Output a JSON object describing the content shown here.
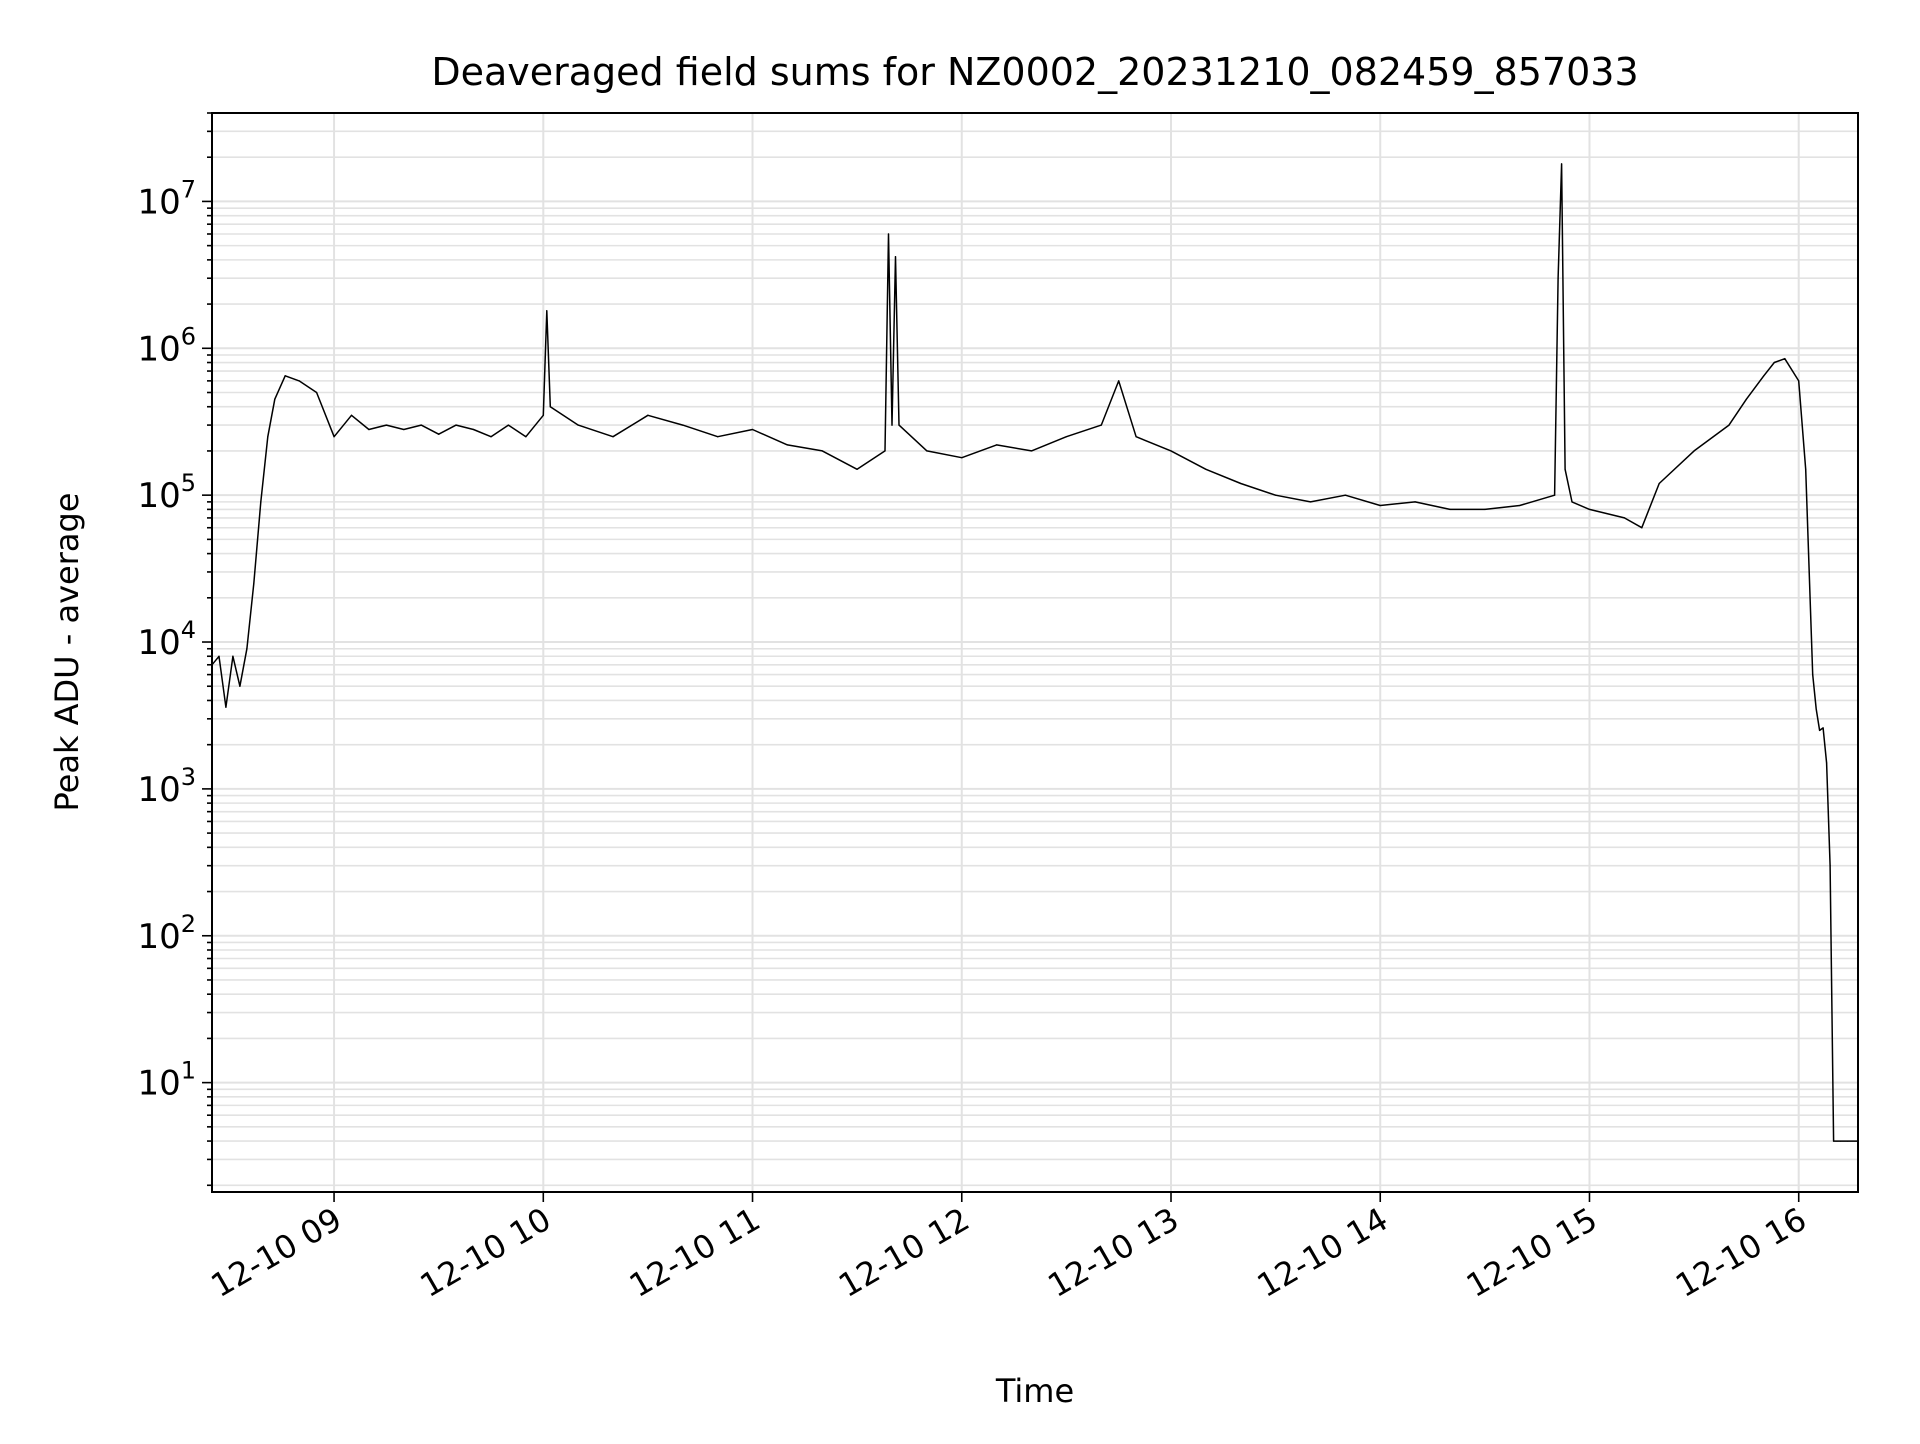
{
  "chart_data": {
    "type": "line",
    "title": "Deaveraged field sums for NZ0002_20231210_082459_857033",
    "xlabel": "Time",
    "ylabel": "Peak ADU - average",
    "yscale": "log",
    "ylim": [
      1.8,
      40000000
    ],
    "xlim": [
      "2023-12-10 08:25",
      "2023-12-10 16:17"
    ],
    "grid": true,
    "line_color": "#000000",
    "x_ticks": [
      {
        "value": "2023-12-10 09:00",
        "label": "12-10 09"
      },
      {
        "value": "2023-12-10 10:00",
        "label": "12-10 10"
      },
      {
        "value": "2023-12-10 11:00",
        "label": "12-10 11"
      },
      {
        "value": "2023-12-10 12:00",
        "label": "12-10 12"
      },
      {
        "value": "2023-12-10 13:00",
        "label": "12-10 13"
      },
      {
        "value": "2023-12-10 14:00",
        "label": "12-10 14"
      },
      {
        "value": "2023-12-10 15:00",
        "label": "12-10 15"
      },
      {
        "value": "2023-12-10 16:00",
        "label": "12-10 16"
      }
    ],
    "y_ticks": [
      {
        "value": 10,
        "base": "10",
        "exp": "1"
      },
      {
        "value": 100,
        "base": "10",
        "exp": "2"
      },
      {
        "value": 1000,
        "base": "10",
        "exp": "3"
      },
      {
        "value": 10000,
        "base": "10",
        "exp": "4"
      },
      {
        "value": 100000,
        "base": "10",
        "exp": "5"
      },
      {
        "value": 1000000,
        "base": "10",
        "exp": "6"
      },
      {
        "value": 10000000,
        "base": "10",
        "exp": "7"
      }
    ],
    "series": [
      {
        "x": [
          "2023-12-10 08:25",
          "2023-12-10 08:27",
          "2023-12-10 08:29",
          "2023-12-10 08:31",
          "2023-12-10 08:33",
          "2023-12-10 08:35",
          "2023-12-10 08:37",
          "2023-12-10 08:39",
          "2023-12-10 08:41",
          "2023-12-10 08:43",
          "2023-12-10 08:46",
          "2023-12-10 08:50",
          "2023-12-10 08:55",
          "2023-12-10 09:00",
          "2023-12-10 09:05",
          "2023-12-10 09:10",
          "2023-12-10 09:15",
          "2023-12-10 09:20",
          "2023-12-10 09:25",
          "2023-12-10 09:30",
          "2023-12-10 09:35",
          "2023-12-10 09:40",
          "2023-12-10 09:45",
          "2023-12-10 09:50",
          "2023-12-10 09:55",
          "2023-12-10 10:00",
          "2023-12-10 10:01",
          "2023-12-10 10:02",
          "2023-12-10 10:10",
          "2023-12-10 10:20",
          "2023-12-10 10:30",
          "2023-12-10 10:40",
          "2023-12-10 10:50",
          "2023-12-10 11:00",
          "2023-12-10 11:10",
          "2023-12-10 11:20",
          "2023-12-10 11:30",
          "2023-12-10 11:38",
          "2023-12-10 11:39",
          "2023-12-10 11:40",
          "2023-12-10 11:41",
          "2023-12-10 11:42",
          "2023-12-10 11:50",
          "2023-12-10 12:00",
          "2023-12-10 12:10",
          "2023-12-10 12:20",
          "2023-12-10 12:30",
          "2023-12-10 12:40",
          "2023-12-10 12:45",
          "2023-12-10 12:50",
          "2023-12-10 13:00",
          "2023-12-10 13:10",
          "2023-12-10 13:20",
          "2023-12-10 13:30",
          "2023-12-10 13:40",
          "2023-12-10 13:50",
          "2023-12-10 14:00",
          "2023-12-10 14:10",
          "2023-12-10 14:20",
          "2023-12-10 14:30",
          "2023-12-10 14:40",
          "2023-12-10 14:50",
          "2023-12-10 14:51",
          "2023-12-10 14:52",
          "2023-12-10 14:53",
          "2023-12-10 14:55",
          "2023-12-10 15:00",
          "2023-12-10 15:10",
          "2023-12-10 15:15",
          "2023-12-10 15:20",
          "2023-12-10 15:30",
          "2023-12-10 15:40",
          "2023-12-10 15:45",
          "2023-12-10 15:50",
          "2023-12-10 15:53",
          "2023-12-10 15:56",
          "2023-12-10 16:00",
          "2023-12-10 16:02",
          "2023-12-10 16:04",
          "2023-12-10 16:05",
          "2023-12-10 16:06",
          "2023-12-10 16:07",
          "2023-12-10 16:08",
          "2023-12-10 16:09",
          "2023-12-10 16:10",
          "2023-12-10 16:11",
          "2023-12-10 16:12",
          "2023-12-10 16:14",
          "2023-12-10 16:17"
        ],
        "y": [
          7000,
          8000,
          3600,
          8000,
          5000,
          9000,
          25000,
          90000,
          250000,
          450000,
          650000,
          600000,
          500000,
          250000,
          350000,
          280000,
          300000,
          280000,
          300000,
          260000,
          300000,
          280000,
          250000,
          300000,
          250000,
          350000,
          1800000,
          400000,
          300000,
          250000,
          350000,
          300000,
          250000,
          280000,
          220000,
          200000,
          150000,
          200000,
          6000000,
          300000,
          4200000,
          300000,
          200000,
          180000,
          220000,
          200000,
          250000,
          300000,
          600000,
          250000,
          200000,
          150000,
          120000,
          100000,
          90000,
          100000,
          85000,
          90000,
          80000,
          80000,
          85000,
          100000,
          3000000,
          18000000,
          150000,
          90000,
          80000,
          70000,
          60000,
          120000,
          200000,
          300000,
          450000,
          650000,
          800000,
          850000,
          600000,
          150000,
          6000,
          3500,
          2500,
          2600,
          1500,
          300,
          4,
          4,
          4,
          4,
          4
        ]
      }
    ]
  }
}
